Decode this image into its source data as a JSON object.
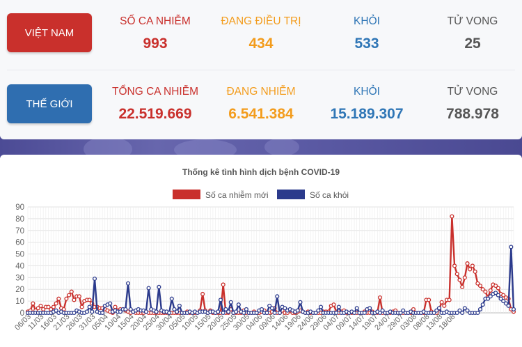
{
  "vietnam": {
    "label": "VIỆT NAM",
    "cases_label": "SỐ CA NHIỄM",
    "cases": "993",
    "treating_label": "ĐANG ĐIỀU TRỊ",
    "treating": "434",
    "recovered_label": "KHỎI",
    "recovered": "533",
    "deaths_label": "TỬ VONG",
    "deaths": "25"
  },
  "world": {
    "label": "THẾ GIỚI",
    "cases_label": "TỔNG CA NHIỄM",
    "cases": "22.519.669",
    "active_label": "ĐANG NHIỄM",
    "active": "6.541.384",
    "recovered_label": "KHỎI",
    "recovered": "15.189.307",
    "deaths_label": "TỬ VONG",
    "deaths": "788.978"
  },
  "colors": {
    "new_cases": "#c9302c",
    "recovered": "#2b3a8c",
    "vn_button": "#c9302c",
    "world_button": "#2f6eb0"
  },
  "chart_data": {
    "type": "line",
    "title": "Thống kê tình hình dịch bệnh COVID-19",
    "legend_position": "top",
    "grid": true,
    "ylim": [
      0,
      90
    ],
    "yticks": [
      0,
      10,
      20,
      30,
      40,
      50,
      60,
      70,
      80,
      90
    ],
    "x_start": "06/03",
    "x_end": "20/08",
    "xtick_labels": [
      "06/03",
      "11/03",
      "16/03",
      "21/03",
      "26/03",
      "31/03",
      "05/04",
      "10/04",
      "15/04",
      "20/04",
      "25/04",
      "30/04",
      "05/05",
      "10/05",
      "15/05",
      "20/05",
      "25/05",
      "30/05",
      "04/06",
      "09/06",
      "14/06",
      "19/06",
      "24/06",
      "29/06",
      "04/07",
      "09/07",
      "14/07",
      "19/07",
      "24/07",
      "29/07",
      "03/08",
      "08/08",
      "13/08",
      "18/08"
    ],
    "series": [
      {
        "name": "Số ca nhiễm mới",
        "color": "#c9302c",
        "values": [
          1,
          2,
          8,
          2,
          4,
          6,
          3,
          5,
          5,
          3,
          5,
          8,
          12,
          4,
          3,
          12,
          15,
          18,
          11,
          14,
          14,
          5,
          10,
          11,
          11,
          8,
          5,
          5,
          4,
          4,
          3,
          2,
          1,
          0,
          5,
          2,
          3,
          3,
          2,
          1,
          0,
          1,
          0,
          0,
          0,
          0,
          1,
          0,
          0,
          0,
          0,
          0,
          0,
          0,
          0,
          0,
          0,
          0,
          0,
          0,
          0,
          0,
          1,
          0,
          0,
          0,
          0,
          2,
          16,
          2,
          0,
          2,
          0,
          0,
          0,
          0,
          24,
          0,
          0,
          3,
          0,
          0,
          0,
          0,
          2,
          0,
          0,
          0,
          1,
          0,
          0,
          1,
          2,
          0,
          0,
          1,
          4,
          0,
          0,
          2,
          0,
          0,
          2,
          0,
          0,
          1,
          2,
          1,
          0,
          1,
          0,
          0,
          0,
          0,
          0,
          1,
          1,
          1,
          6,
          7,
          1,
          0,
          1,
          2,
          0,
          0,
          0,
          0,
          0,
          0,
          0,
          1,
          0,
          0,
          1,
          0,
          0,
          13,
          0,
          0,
          0,
          0,
          1,
          2,
          0,
          0,
          0,
          0,
          0,
          0,
          3,
          0,
          0,
          0,
          0,
          11,
          11,
          1,
          0,
          0,
          3,
          9,
          6,
          11,
          11,
          82,
          40,
          33,
          28,
          22,
          30,
          42,
          37,
          40,
          35,
          25,
          23,
          20,
          18,
          13,
          19,
          24,
          23,
          21,
          16,
          15,
          13,
          12,
          3,
          1
        ]
      },
      {
        "name": "Số ca khỏi",
        "color": "#2b3a8c",
        "values": [
          0,
          0,
          0,
          0,
          0,
          0,
          0,
          0,
          0,
          0,
          1,
          2,
          0,
          1,
          0,
          0,
          0,
          0,
          0,
          2,
          1,
          0,
          0,
          1,
          5,
          1,
          29,
          1,
          0,
          0,
          6,
          7,
          8,
          1,
          2,
          1,
          1,
          3,
          3,
          25,
          3,
          1,
          2,
          3,
          2,
          2,
          1,
          21,
          3,
          2,
          1,
          22,
          2,
          1,
          1,
          0,
          12,
          3,
          1,
          6,
          0,
          0,
          0,
          1,
          0,
          1,
          0,
          1,
          1,
          1,
          0,
          1,
          1,
          0,
          1,
          11,
          0,
          3,
          1,
          9,
          0,
          1,
          7,
          1,
          0,
          3,
          0,
          0,
          0,
          0,
          2,
          3,
          0,
          0,
          6,
          4,
          0,
          14,
          0,
          5,
          4,
          2,
          3,
          2,
          1,
          2,
          9,
          1,
          0,
          0,
          1,
          0,
          0,
          2,
          5,
          0,
          0,
          0,
          0,
          0,
          0,
          5,
          0,
          0,
          1,
          0,
          1,
          0,
          4,
          0,
          0,
          0,
          3,
          4,
          0,
          0,
          1,
          0,
          2,
          0,
          0,
          1,
          0,
          0,
          0,
          0,
          2,
          0,
          0,
          1,
          0,
          0,
          0,
          0,
          1,
          0,
          0,
          0,
          0,
          2,
          4,
          0,
          0,
          1,
          0,
          0,
          0,
          0,
          2,
          0,
          4,
          2,
          0,
          0,
          0,
          0,
          3,
          7,
          12,
          12,
          14,
          16,
          17,
          15,
          12,
          10,
          8,
          6,
          56,
          3
        ]
      }
    ]
  }
}
